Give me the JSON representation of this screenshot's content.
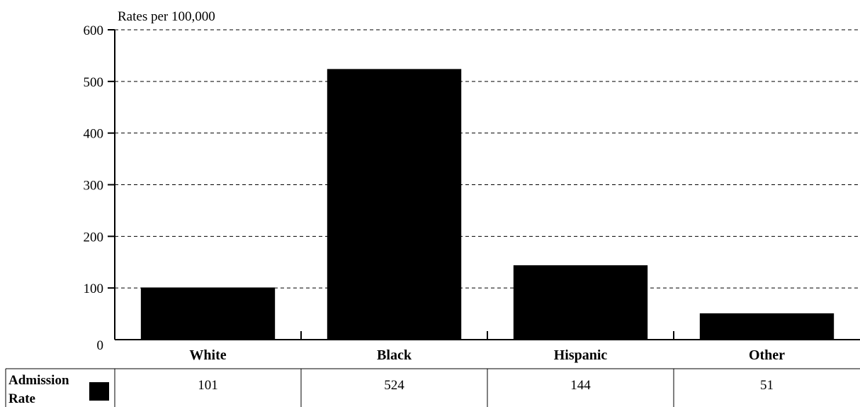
{
  "chart_data": {
    "type": "bar",
    "title": "",
    "ylabel": "Rates per 100,000",
    "xlabel": "",
    "categories": [
      "White",
      "Black",
      "Hispanic",
      "Other"
    ],
    "series": [
      {
        "name": "Admission Rate",
        "values": [
          101,
          524,
          144,
          51
        ],
        "color": "#000000"
      }
    ],
    "ylim": [
      0,
      600
    ],
    "yticks": [
      0,
      100,
      200,
      300,
      400,
      500,
      600
    ],
    "grid": "dashed horizontal",
    "legend": "data table row at bottom"
  },
  "table": {
    "row_label": "Admission Rate",
    "cells": [
      "101",
      "524",
      "144",
      "51"
    ]
  }
}
